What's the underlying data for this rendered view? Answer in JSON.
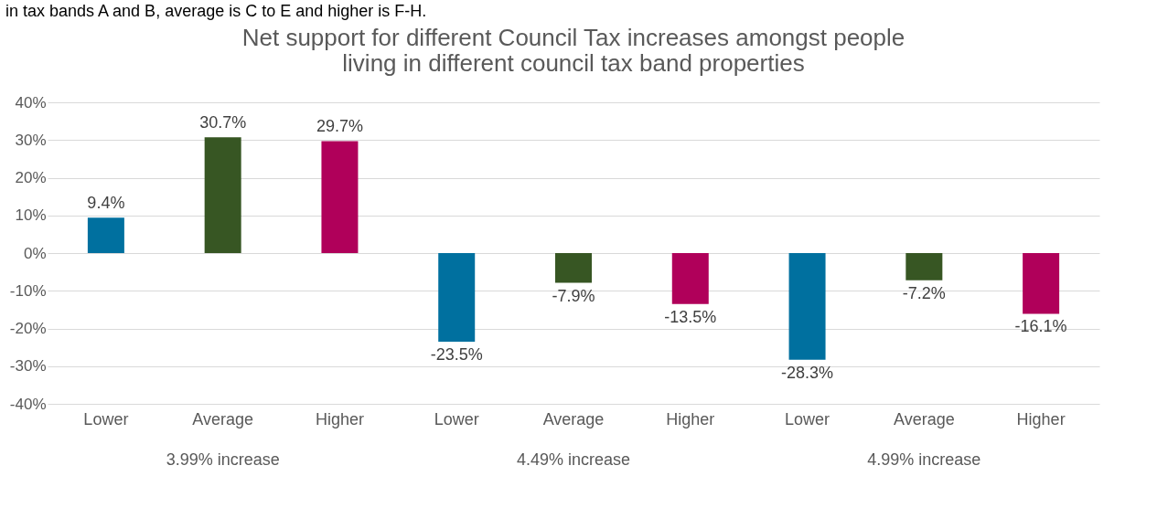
{
  "chart_data": {
    "type": "bar",
    "title": [
      "Net support for different Council Tax increases amongst people",
      "living in different council tax band properties"
    ],
    "annotations": [
      "in tax bands A and B, average is C to E and higher is F-H.",
      "3.99% increase",
      "4.49% increase",
      "4.99% increase"
    ],
    "categories": [
      "Lower",
      "Average",
      "Higher",
      "Lower",
      "Average",
      "Higher",
      "Lower",
      "Average",
      "Higher"
    ],
    "values": [
      9.4,
      30.7,
      29.7,
      -23.5,
      -7.9,
      -13.5,
      -28.3,
      -7.2,
      -16.1
    ],
    "colors": [
      "#00709f",
      "#375623",
      "#b0005a",
      "#00709f",
      "#375623",
      "#b0005a",
      "#00709f",
      "#375623",
      "#b0005a"
    ],
    "value_labels": [
      "9.4%",
      "30.7%",
      "29.7%",
      "-23.5%",
      "-7.9%",
      "-13.5%",
      "-28.3%",
      "-7.2%",
      "-16.1%"
    ],
    "ylim": [
      -40,
      40
    ],
    "yticks": [
      {
        "value": -40,
        "label": "-40%"
      },
      {
        "value": -30,
        "label": "-30%"
      },
      {
        "value": -20,
        "label": "-20%"
      },
      {
        "value": -10,
        "label": "-10%"
      },
      {
        "value": 0,
        "label": "0%"
      },
      {
        "value": 10,
        "label": "10%"
      },
      {
        "value": 20,
        "label": "20%"
      },
      {
        "value": 30,
        "label": "30%"
      },
      {
        "value": 40,
        "label": "40%"
      }
    ],
    "grid": true
  }
}
